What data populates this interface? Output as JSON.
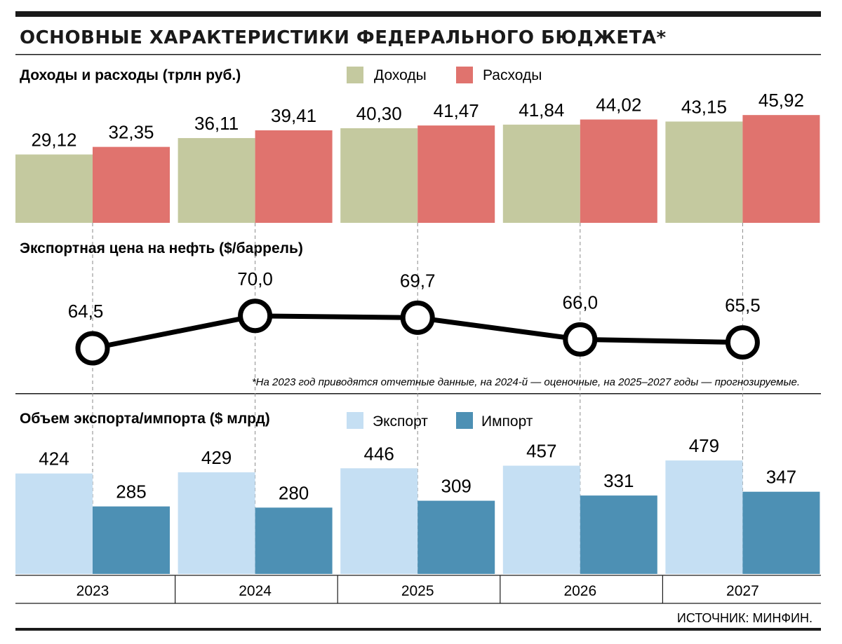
{
  "title": "ОСНОВНЫЕ ХАРАКТЕРИСТИКИ ФЕДЕРАЛЬНОГО БЮДЖЕТА*",
  "colors": {
    "income": "#c4c99f",
    "expense": "#e0736e",
    "export": "#c5dff3",
    "import": "#4d90b4",
    "line": "#000000"
  },
  "chart_data": [
    {
      "type": "bar",
      "title": "Доходы и расходы (трлн руб.)",
      "categories": [
        "2023",
        "2024",
        "2025",
        "2026",
        "2027"
      ],
      "series": [
        {
          "name": "Доходы",
          "values": [
            29.12,
            36.11,
            40.3,
            41.84,
            43.15
          ],
          "labels": [
            "29,12",
            "36,11",
            "40,30",
            "41,84",
            "43,15"
          ]
        },
        {
          "name": "Расходы",
          "values": [
            32.35,
            39.41,
            41.47,
            44.02,
            45.92
          ],
          "labels": [
            "32,35",
            "39,41",
            "41,47",
            "44,02",
            "45,92"
          ]
        }
      ]
    },
    {
      "type": "line",
      "title": "Экспортная цена на нефть ($/баррель)",
      "categories": [
        "2023",
        "2024",
        "2025",
        "2026",
        "2027"
      ],
      "series": [
        {
          "values": [
            64.5,
            70.0,
            69.7,
            66.0,
            65.5
          ],
          "labels": [
            "64,5",
            "70,0",
            "69,7",
            "66,0",
            "65,5"
          ]
        }
      ]
    },
    {
      "type": "bar",
      "title": "Объем экспорта/импорта ($ млрд)",
      "categories": [
        "2023",
        "2024",
        "2025",
        "2026",
        "2027"
      ],
      "series": [
        {
          "name": "Экспорт",
          "values": [
            424,
            429,
            446,
            457,
            479
          ],
          "labels": [
            "424",
            "429",
            "446",
            "457",
            "479"
          ]
        },
        {
          "name": "Импорт",
          "values": [
            285,
            280,
            309,
            331,
            347
          ],
          "labels": [
            "285",
            "280",
            "309",
            "331",
            "347"
          ]
        }
      ]
    }
  ],
  "note": "*На 2023 год приводятся отчетные данные, на 2024-й — оценочные, на 2025–2027 годы — прогнозируемые.",
  "source": "ИСТОЧНИК: МИНФИН."
}
